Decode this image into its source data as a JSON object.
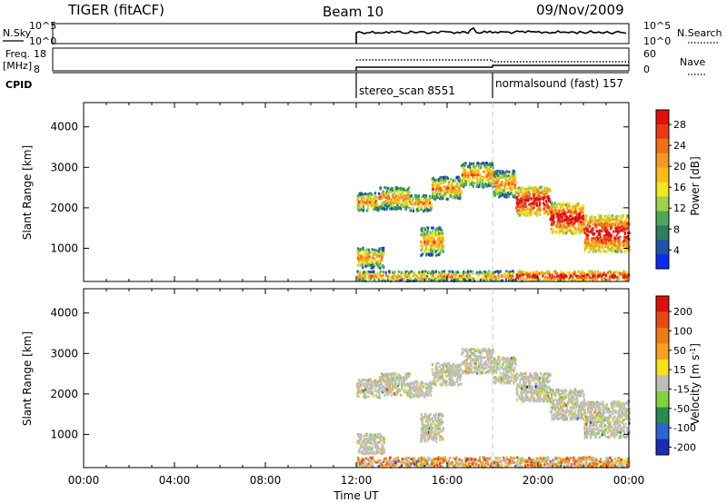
{
  "header": {
    "title": "TIGER (fitACF)",
    "beam": "Beam 10",
    "date": "09/Nov/2009"
  },
  "chart_data": {
    "type": "heatmap",
    "time_axis": {
      "label": "Time UT",
      "ticks": [
        "00:00",
        "04:00",
        "08:00",
        "12:00",
        "16:00",
        "20:00",
        "00:00"
      ],
      "range_hours": [
        0,
        24
      ]
    },
    "data_start_hour": 12,
    "mode_change_hour": 18,
    "modes": [
      {
        "label": "stereo_scan 8551",
        "start_hour": 12
      },
      {
        "label": "normalsound (fast) 157",
        "start_hour": 18
      }
    ],
    "top_panels": {
      "nsky": {
        "left_label": "N.Sky",
        "left_ticks": [
          "10^5",
          "10^0"
        ],
        "right_ticks": [
          "10^5",
          "10^0"
        ],
        "right_label": "N.Search",
        "right_style": "dotted"
      },
      "freq": {
        "left_label_line1": "Freq.",
        "left_label_line2": "[MHz]",
        "left_ticks": [
          "18",
          "8"
        ],
        "right_ticks": [
          "60",
          "0"
        ],
        "right_label": "Nave",
        "right_style": "dotted"
      },
      "cpid_label": "CPID"
    },
    "panels": [
      {
        "name": "power",
        "ylabel": "Slant Range [km]",
        "yticks": [
          1000,
          2000,
          3000,
          4000
        ],
        "ylim": [
          180,
          4600
        ],
        "colorbar": {
          "label": "Power [dB]",
          "tick_labels": [
            "4",
            "8",
            "12",
            "16",
            "20",
            "24",
            "28"
          ],
          "colors": [
            "#0a2bf5",
            "#1f52ab",
            "#2f7d62",
            "#4fa85a",
            "#9ed24c",
            "#f2e81c",
            "#f9bc1c",
            "#f59a1c",
            "#f0701a",
            "#ea3a14",
            "#e30e0e"
          ]
        }
      },
      {
        "name": "velocity",
        "ylabel": "Slant Range [km]",
        "yticks": [
          1000,
          2000,
          3000,
          4000
        ],
        "ylim": [
          180,
          4600
        ],
        "colorbar": {
          "label": "Velocity [m s^-1]",
          "tick_labels": [
            "200",
            "100",
            "50",
            "15",
            "-15",
            "-50",
            "-100",
            "-200"
          ],
          "colors": [
            "#1a2db8",
            "#2f63d6",
            "#2a8a52",
            "#7fd23c",
            "#bfbfb8",
            "#f4e11c",
            "#f5a21c",
            "#f07a14",
            "#e64a10",
            "#df1010"
          ]
        }
      }
    ],
    "scatter_bands": [
      {
        "t0": 12.0,
        "t1": 13.0,
        "r0": 1900,
        "r1": 2350
      },
      {
        "t0": 13.0,
        "t1": 14.3,
        "r0": 1950,
        "r1": 2500
      },
      {
        "t0": 14.3,
        "t1": 15.3,
        "r0": 1900,
        "r1": 2300
      },
      {
        "t0": 15.3,
        "t1": 16.6,
        "r0": 2200,
        "r1": 2750
      },
      {
        "t0": 16.6,
        "t1": 18.0,
        "r0": 2500,
        "r1": 3100
      },
      {
        "t0": 18.0,
        "t1": 19.0,
        "r0": 2250,
        "r1": 2900
      },
      {
        "t0": 19.0,
        "t1": 20.5,
        "r0": 1800,
        "r1": 2500
      },
      {
        "t0": 20.5,
        "t1": 22.0,
        "r0": 1350,
        "r1": 2100
      },
      {
        "t0": 22.0,
        "t1": 24.0,
        "r0": 900,
        "r1": 1800
      },
      {
        "t0": 12.0,
        "t1": 13.2,
        "r0": 500,
        "r1": 1000
      },
      {
        "t0": 14.8,
        "t1": 15.8,
        "r0": 800,
        "r1": 1500
      },
      {
        "t0": 12.0,
        "t1": 24.0,
        "r0": 180,
        "r1": 420
      }
    ]
  }
}
